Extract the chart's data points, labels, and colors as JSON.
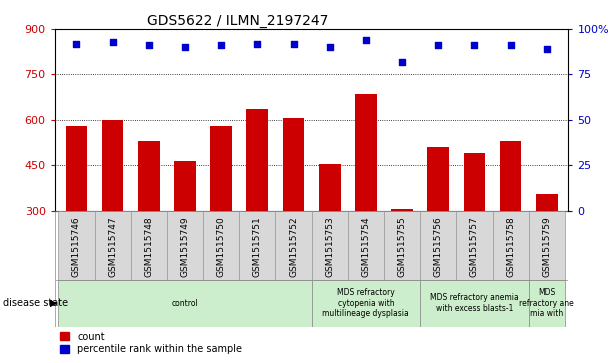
{
  "title": "GDS5622 / ILMN_2197247",
  "samples": [
    "GSM1515746",
    "GSM1515747",
    "GSM1515748",
    "GSM1515749",
    "GSM1515750",
    "GSM1515751",
    "GSM1515752",
    "GSM1515753",
    "GSM1515754",
    "GSM1515755",
    "GSM1515756",
    "GSM1515757",
    "GSM1515758",
    "GSM1515759"
  ],
  "counts": [
    580,
    600,
    530,
    465,
    580,
    635,
    605,
    455,
    685,
    305,
    510,
    490,
    530,
    355
  ],
  "percentiles": [
    92,
    93,
    91,
    90,
    91,
    92,
    92,
    90,
    94,
    82,
    91,
    91,
    91,
    89
  ],
  "disease_groups": [
    {
      "label": "control",
      "start": 0,
      "end": 7,
      "color": "#cceecc"
    },
    {
      "label": "MDS refractory\ncytopenia with\nmultilineage dysplasia",
      "start": 7,
      "end": 10,
      "color": "#cceecc"
    },
    {
      "label": "MDS refractory anemia\nwith excess blasts-1",
      "start": 10,
      "end": 13,
      "color": "#cceecc"
    },
    {
      "label": "MDS\nrefractory ane\nmia with",
      "start": 13,
      "end": 14,
      "color": "#cceecc"
    }
  ],
  "bar_color": "#cc0000",
  "dot_color": "#0000cc",
  "ylim_left": [
    300,
    900
  ],
  "ylim_right": [
    0,
    100
  ],
  "yticks_left": [
    300,
    450,
    600,
    750,
    900
  ],
  "yticks_right": [
    0,
    25,
    50,
    75,
    100
  ],
  "ylabel_left_color": "#cc0000",
  "ylabel_right_color": "#0000cc",
  "plot_bg": "#ffffff",
  "label_bg": "#d8d8d8",
  "title_fontsize": 10,
  "bar_bottom": 300
}
